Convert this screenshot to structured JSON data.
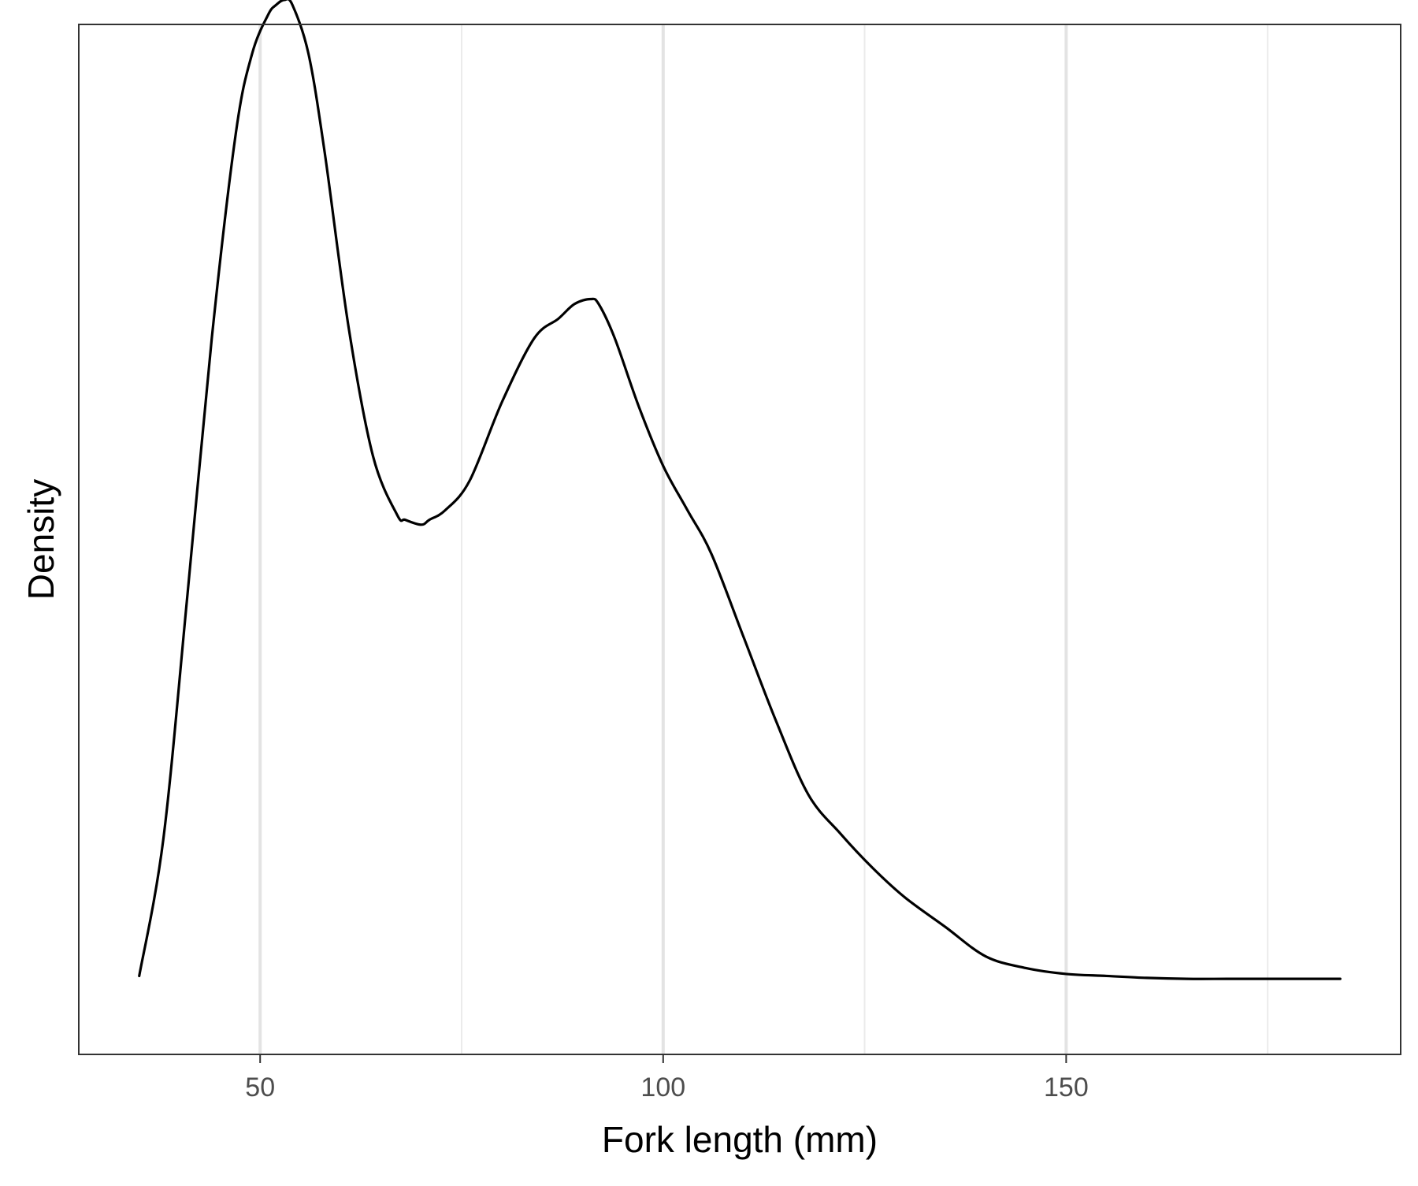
{
  "chart_data": {
    "type": "line",
    "title": "",
    "xlabel": "Fork length (mm)",
    "ylabel": "Density",
    "xlim": [
      27.5,
      191.5
    ],
    "ylim": [
      0.0,
      1.05
    ],
    "x_ticks": [
      50,
      100,
      150
    ],
    "x_tick_labels": [
      "50",
      "100",
      "150"
    ],
    "x_minor_gridlines": [
      75,
      125,
      175
    ],
    "y_ticks_shown": false,
    "grid": {
      "vertical": true,
      "horizontal": false
    },
    "legend": "none",
    "series": [
      {
        "color": "#000000",
        "x": [
          35,
          38,
          41,
          44,
          47,
          49,
          51,
          52,
          53,
          54,
          56,
          58,
          61,
          64,
          67,
          68,
          70,
          71,
          73,
          76,
          80,
          84,
          87,
          89,
          91,
          92,
          94,
          97,
          100,
          103,
          106,
          110,
          114,
          118,
          122,
          126,
          130,
          135,
          140,
          145,
          150,
          155,
          160,
          165,
          170,
          175,
          180,
          184
        ],
        "y": [
          0.08,
          0.22,
          0.47,
          0.73,
          0.94,
          1.02,
          1.06,
          1.07,
          1.075,
          1.07,
          1.02,
          0.92,
          0.74,
          0.61,
          0.55,
          0.545,
          0.54,
          0.545,
          0.555,
          0.585,
          0.665,
          0.73,
          0.75,
          0.765,
          0.77,
          0.765,
          0.73,
          0.66,
          0.6,
          0.555,
          0.51,
          0.425,
          0.34,
          0.265,
          0.225,
          0.19,
          0.16,
          0.13,
          0.1,
          0.088,
          0.082,
          0.08,
          0.078,
          0.077,
          0.077,
          0.077,
          0.077,
          0.077
        ]
      }
    ]
  }
}
